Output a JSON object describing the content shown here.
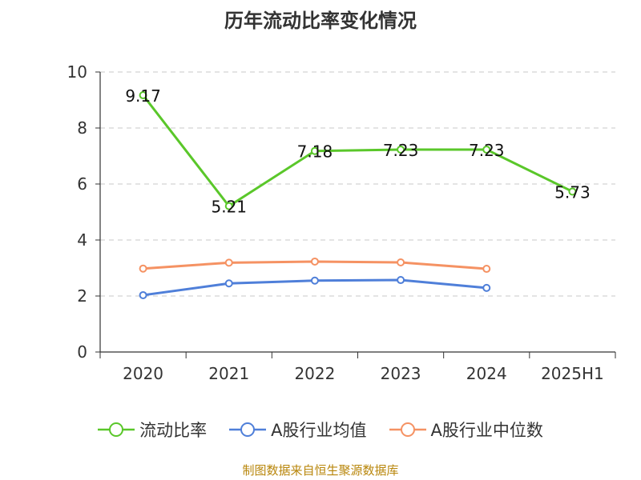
{
  "chart_data": {
    "type": "line",
    "title": "历年流动比率变化情况",
    "categories": [
      "2020",
      "2021",
      "2022",
      "2023",
      "2024",
      "2025H1"
    ],
    "ylim": [
      0,
      10
    ],
    "yticks": [
      0,
      2,
      4,
      6,
      8,
      10
    ],
    "grid": true,
    "legend_position": "bottom",
    "series": [
      {
        "name": "流动比率",
        "color": "#5ac72a",
        "values": [
          9.17,
          5.21,
          7.18,
          7.23,
          7.23,
          5.73
        ],
        "labels": [
          "9.17",
          "5.21",
          "7.18",
          "7.23",
          "7.23",
          "5.73"
        ]
      },
      {
        "name": "A股行业均值",
        "color": "#4f7fd9",
        "values": [
          2.03,
          2.45,
          2.55,
          2.57,
          2.29,
          null
        ]
      },
      {
        "name": "A股行业中位数",
        "color": "#f59263",
        "values": [
          2.98,
          3.19,
          3.23,
          3.2,
          2.97,
          null
        ]
      }
    ]
  },
  "source": "制图数据来自恒生聚源数据库"
}
